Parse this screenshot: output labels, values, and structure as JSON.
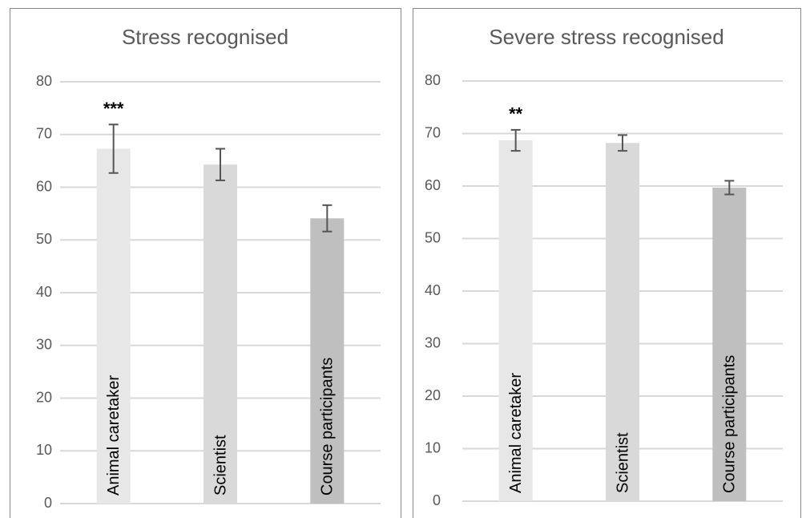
{
  "chart_data": [
    {
      "type": "bar",
      "title": "Stress recognised",
      "categories": [
        "Animal caretaker",
        "Scientist",
        "Course participants"
      ],
      "values": [
        67.3,
        64.3,
        54.1
      ],
      "errors": [
        4.6,
        3,
        2.5
      ],
      "colors": [
        "#e7e7e7",
        "#d9d9d9",
        "#bfbfbf"
      ],
      "annotations": [
        "***",
        null,
        null
      ],
      "ylim": [
        0,
        80
      ],
      "yticks": [
        0,
        10,
        20,
        30,
        40,
        50,
        60,
        70,
        80
      ],
      "grid": true
    },
    {
      "type": "bar",
      "title": "Severe stress recognised",
      "categories": [
        "Animal caretaker",
        "Scientist",
        "Course participants"
      ],
      "values": [
        68.7,
        68.2,
        59.7
      ],
      "errors": [
        2,
        1.5,
        1.3
      ],
      "colors": [
        "#e7e7e7",
        "#d9d9d9",
        "#bfbfbf"
      ],
      "annotations": [
        "**",
        null,
        null
      ],
      "ylim": [
        0,
        80
      ],
      "yticks": [
        0,
        10,
        20,
        30,
        40,
        50,
        60,
        70,
        80
      ],
      "grid": true
    }
  ]
}
